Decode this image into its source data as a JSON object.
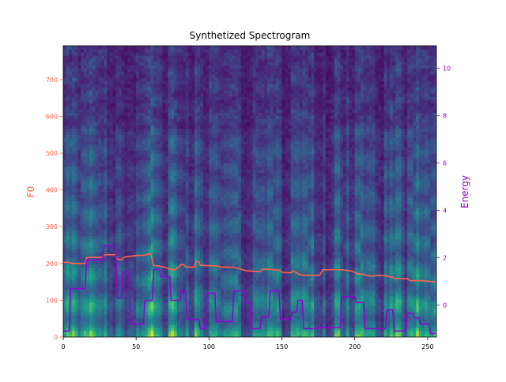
{
  "chart_data": {
    "type": "line",
    "title": "Synthetized Spectrogram",
    "background": "spectrogram heatmap (viridis colormap)",
    "colors": {
      "f0": "#ff6347",
      "energy": "#9400d3",
      "heat_low": "#440154",
      "heat_mid": "#21918c",
      "heat_high": "#fde725"
    },
    "x_axis": {
      "range": [
        0,
        256
      ],
      "ticks": [
        0,
        50,
        100,
        150,
        200,
        250
      ],
      "tick_labels": [
        "0",
        "50",
        "100",
        "150",
        "200",
        "250"
      ]
    },
    "left_axis": {
      "label": "F0",
      "range": [
        0,
        792
      ],
      "ticks": [
        0,
        100,
        200,
        300,
        400,
        500,
        600,
        700
      ],
      "tick_labels": [
        "0",
        "100",
        "200",
        "300",
        "400",
        "500",
        "600",
        "700"
      ]
    },
    "right_axis": {
      "label": "Energy",
      "range": [
        -1.35,
        10.95
      ],
      "ticks": [
        0,
        2,
        4,
        6,
        8,
        10
      ],
      "tick_labels": [
        "0",
        "2",
        "4",
        "6",
        "8",
        "10"
      ]
    },
    "series": [
      {
        "name": "F0",
        "axis": "left",
        "x": [
          0,
          4,
          6,
          15,
          16,
          18,
          27,
          29,
          36,
          37,
          40,
          41,
          43,
          51,
          55,
          60,
          62,
          70,
          73,
          76,
          77,
          79,
          81,
          83,
          84,
          90,
          91,
          93,
          94,
          106,
          108,
          117,
          123,
          126,
          135,
          137,
          148,
          151,
          156,
          158,
          162,
          164,
          176,
          178,
          191,
          197,
          200,
          201,
          206,
          210,
          213,
          218,
          226,
          227,
          236,
          238,
          247,
          255
        ],
        "y": [
          203,
          203,
          200,
          200,
          215,
          217,
          217,
          224,
          224,
          212,
          210,
          216,
          218,
          222,
          222,
          227,
          195,
          190,
          185,
          182,
          185,
          190,
          198,
          195,
          190,
          190,
          205,
          205,
          195,
          193,
          190,
          190,
          183,
          180,
          178,
          185,
          182,
          175,
          175,
          180,
          170,
          168,
          168,
          183,
          183,
          180,
          176,
          173,
          170,
          166,
          166,
          168,
          163,
          159,
          159,
          153,
          153,
          150
        ]
      },
      {
        "name": "Energy",
        "axis": "right",
        "x": [
          0,
          4,
          5,
          15,
          16,
          27,
          28,
          36,
          37,
          40,
          41,
          45,
          46,
          55,
          56,
          61,
          62,
          66,
          67,
          73,
          74,
          80,
          81,
          84,
          85,
          93,
          94,
          97,
          98,
          104,
          105,
          116,
          117,
          124,
          125,
          128,
          129,
          135,
          136,
          141,
          142,
          148,
          149,
          156,
          157,
          160,
          161,
          164,
          165,
          174,
          175,
          190,
          191,
          200,
          201,
          206,
          207,
          221,
          222,
          226,
          227,
          235,
          236,
          240,
          241,
          244,
          245,
          251,
          252,
          255
        ],
        "y": [
          -1.1,
          -1.1,
          0.7,
          0.7,
          1.9,
          1.9,
          2.5,
          2.5,
          0.3,
          0.3,
          1.4,
          1.4,
          -0.8,
          -0.8,
          0.2,
          0.2,
          1.5,
          1.5,
          1.2,
          1.2,
          0.2,
          0.2,
          0.6,
          0.6,
          -0.6,
          -0.6,
          -1.0,
          -1.0,
          0.5,
          0.5,
          -0.7,
          -0.7,
          0.6,
          0.6,
          0.1,
          0.1,
          -1.0,
          -1.0,
          -0.5,
          -0.5,
          0.6,
          0.6,
          -0.6,
          -0.6,
          -0.3,
          -0.3,
          0.2,
          0.2,
          -1.0,
          -1.0,
          -0.95,
          -0.95,
          0.35,
          0.35,
          0.1,
          0.1,
          -1.0,
          -1.0,
          -0.2,
          -0.2,
          -1.1,
          -1.1,
          -0.35,
          -0.35,
          -0.55,
          -0.55,
          -0.8,
          -0.8,
          -1.2,
          -1.2
        ]
      }
    ]
  }
}
